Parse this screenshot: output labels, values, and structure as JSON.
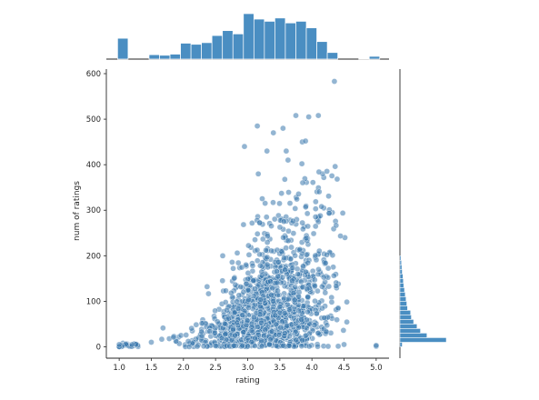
{
  "chart_data": {
    "type": "scatter",
    "subtype": "joint plot with marginal histograms",
    "xlabel": "rating",
    "ylabel": "num of ratings",
    "xlim": [
      0.8,
      5.2
    ],
    "ylim": [
      -25,
      610
    ],
    "x_ticks": [
      "1.0",
      "1.5",
      "2.0",
      "2.5",
      "3.0",
      "3.5",
      "4.0",
      "4.5",
      "5.0"
    ],
    "y_ticks": [
      "0",
      "100",
      "200",
      "300",
      "400",
      "500",
      "600"
    ],
    "grid": false,
    "colors": {
      "points": "#3b79ad",
      "bars": "#4a8ec2",
      "bar_edge": "#ffffff",
      "axes": "#262626"
    },
    "x_marginal_histogram": {
      "bin_start": 0.975,
      "bin_width": 0.1632,
      "counts": [
        38,
        0,
        0,
        8,
        7,
        9,
        29,
        27,
        30,
        43,
        52,
        46,
        83,
        73,
        69,
        75,
        66,
        69,
        57,
        32,
        12,
        0,
        0,
        1,
        5
      ]
    },
    "y_marginal_histogram": {
      "bin_width": 10,
      "counts": [
        6,
        122,
        71,
        54,
        45,
        36,
        30,
        28,
        20,
        18,
        16,
        14,
        12,
        10,
        9,
        8,
        6,
        5,
        4,
        3
      ]
    },
    "points": {
      "approx_count": 1400,
      "bulk_region": "num of ratings 0–150 for rating 2.0–4.5, spreading upward to ~300–400 between rating 3.0 and 4.5",
      "notable": [
        [
          1.0,
          0
        ],
        [
          1.0,
          5
        ],
        [
          1.2,
          5
        ],
        [
          1.5,
          10
        ],
        [
          2.5,
          2
        ],
        [
          3.0,
          1
        ],
        [
          4.5,
          5
        ],
        [
          5.0,
          1
        ],
        [
          5.0,
          3
        ],
        [
          3.15,
          485
        ],
        [
          3.55,
          480
        ],
        [
          3.75,
          508
        ],
        [
          3.95,
          505
        ],
        [
          4.1,
          508
        ],
        [
          4.35,
          583
        ],
        [
          3.85,
          450
        ],
        [
          3.6,
          430
        ],
        [
          2.95,
          440
        ],
        [
          3.4,
          470
        ],
        [
          3.3,
          430
        ],
        [
          3.9,
          452
        ]
      ]
    }
  }
}
